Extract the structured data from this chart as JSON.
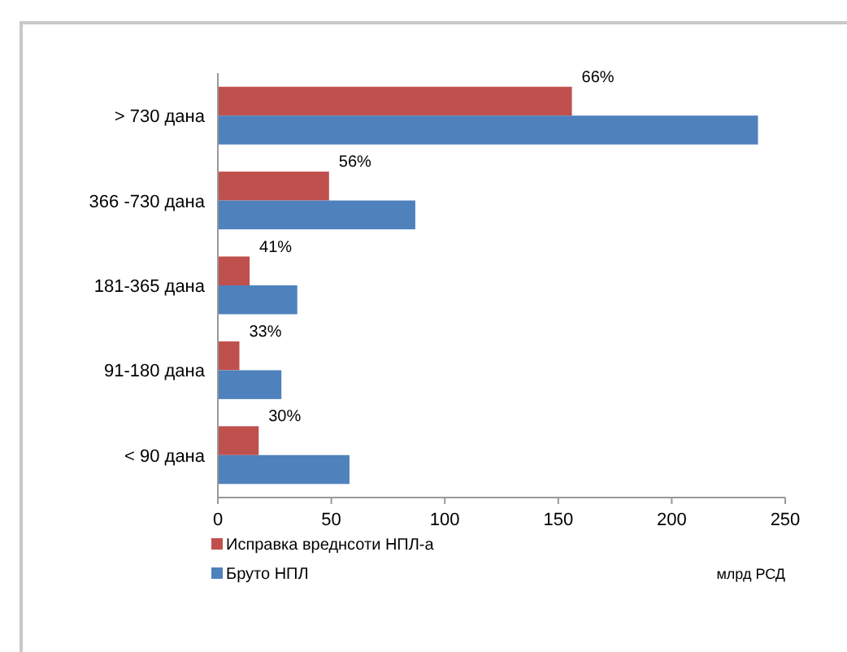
{
  "chart_data": {
    "type": "bar",
    "orientation": "horizontal",
    "categories": [
      "> 730 дана",
      "366 -730 дана",
      "181-365 дана",
      "91-180 дана",
      "< 90 дана"
    ],
    "series": [
      {
        "name": "Исправка вреднсоти НПЛ-а",
        "color": "#c0504d",
        "values": [
          156,
          49,
          14,
          9.5,
          18
        ]
      },
      {
        "name": "Бруто НПЛ",
        "color": "#4f81bd",
        "values": [
          238,
          87,
          35,
          28,
          58
        ]
      }
    ],
    "annotations": [
      {
        "text": "66%",
        "x": 156,
        "y": "> 730 дана"
      },
      {
        "text": "56%",
        "x": 49,
        "y": "366 -730 дана"
      },
      {
        "text": "41%",
        "x": 14,
        "y": "181-365 дана"
      },
      {
        "text": "33%",
        "x": 9.5,
        "y": "91-180 дана"
      },
      {
        "text": "30%",
        "x": 18,
        "y": "< 90 дана"
      }
    ],
    "xlim": [
      0,
      250
    ],
    "xticks": [
      0,
      50,
      100,
      150,
      200,
      250
    ],
    "xlabel": "млрд РСД",
    "grid": false,
    "legend": "bottom left"
  }
}
